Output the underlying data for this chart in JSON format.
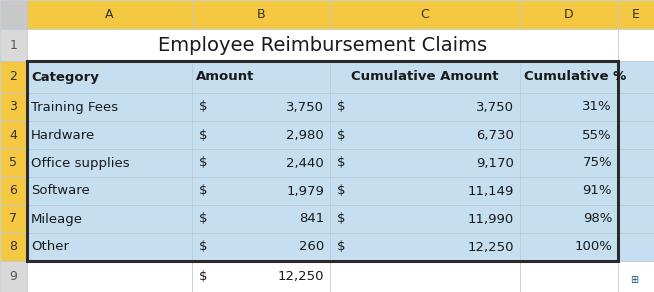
{
  "title": "Employee Reimbursement Claims",
  "col_headers": [
    "Category",
    "Amount",
    "Cumulative Amount",
    "Cumulative %"
  ],
  "rows": [
    [
      "Training Fees",
      "$ 3,750",
      "3,750",
      "31%"
    ],
    [
      "Hardware",
      "$ 2,980",
      "6,730",
      "55%"
    ],
    [
      "Office supplies",
      "$ 2,440",
      "9,170",
      "75%"
    ],
    [
      "Software",
      "$ 1,979",
      "11,149",
      "91%"
    ],
    [
      "Mileage",
      "$  841",
      "11,990",
      "98%"
    ],
    [
      "Other",
      "$  260",
      "12,250",
      "100%"
    ]
  ],
  "footer_amount": "$ 12,250",
  "col_letters": [
    "A",
    "B",
    "C",
    "D",
    "E"
  ],
  "yellow_bg": "#f5c842",
  "blue_bg": "#c5dff0",
  "white_bg": "#ffffff",
  "grey_bg": "#d9d9d9",
  "border_dark": "#2a2a2a",
  "grid_light": "#b8c8d8",
  "title_fontsize": 14,
  "header_fontsize": 9.5,
  "cell_fontsize": 9.5,
  "row_num_fontsize": 9,
  "amount_col_b": [
    "$ 3,750",
    "$ 2,980",
    "$ 2,440",
    "$ 1,979",
    "$   841",
    "$   260"
  ],
  "cum_col_c_dollar": [
    "$",
    "$",
    "$",
    "$",
    "$",
    "$"
  ]
}
